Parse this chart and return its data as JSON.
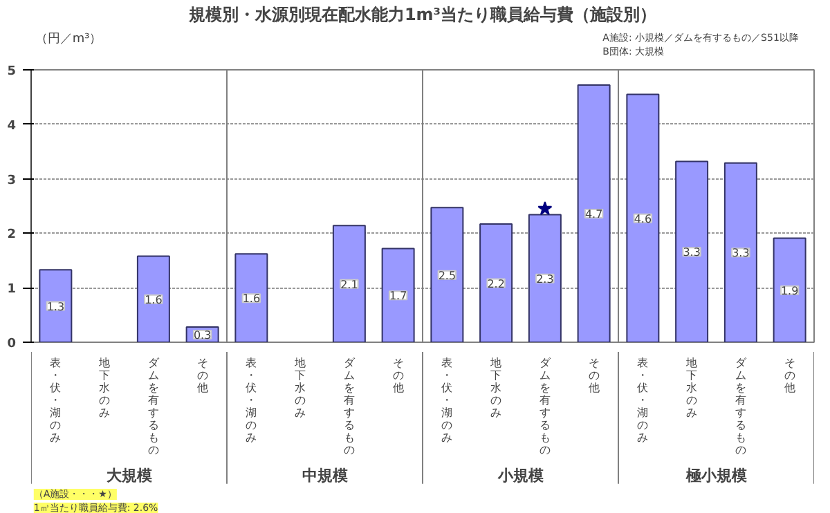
{
  "chart_data": {
    "type": "bar",
    "title": "規模別・水源別現在配水能力1m³当たり職員給与費（施設別）",
    "ylabel": "（円／m³）",
    "categories": [
      "表・伏・湖のみ",
      "地下水のみ",
      "ダムを有するもの",
      "その他",
      "表・伏・湖のみ",
      "地下水のみ",
      "ダムを有するもの",
      "その他",
      "表・伏・湖のみ",
      "地下水のみ",
      "ダムを有するもの",
      "その他",
      "表・伏・湖のみ",
      "地下水のみ",
      "ダムを有するもの",
      "その他"
    ],
    "series": [
      {
        "type": "bar",
        "color": "#9999ff",
        "values": [
          1.33,
          null,
          1.58,
          0.28,
          1.62,
          null,
          2.14,
          1.72,
          2.47,
          2.17,
          2.34,
          4.72,
          4.55,
          3.32,
          3.29,
          1.91
        ],
        "value_labels": [
          "1.3",
          null,
          "1.6",
          "0.3",
          "1.6",
          null,
          "2.1",
          "1.7",
          "2.5",
          "2.2",
          "2.3",
          "4.7",
          "4.6",
          "3.3",
          "3.3",
          "1.9"
        ]
      },
      {
        "type": "scatter",
        "marker": "star",
        "color": "#000080",
        "values": [
          null,
          null,
          null,
          null,
          null,
          null,
          null,
          null,
          null,
          null,
          2.45,
          null,
          null,
          null,
          null,
          null
        ]
      }
    ],
    "ylim": [
      0,
      5
    ],
    "yticks": [
      0,
      1,
      2,
      3,
      4,
      5
    ],
    "grid": "y",
    "annotations": [
      "大規模",
      "中規模",
      "小規模",
      "極小規模",
      "A施設: 小規模／ダムを有するもの／S51以降",
      "B団体: 大規模",
      "（A施設・・・★）",
      "1㎥当たり職員給与費: 2.6%"
    ]
  }
}
